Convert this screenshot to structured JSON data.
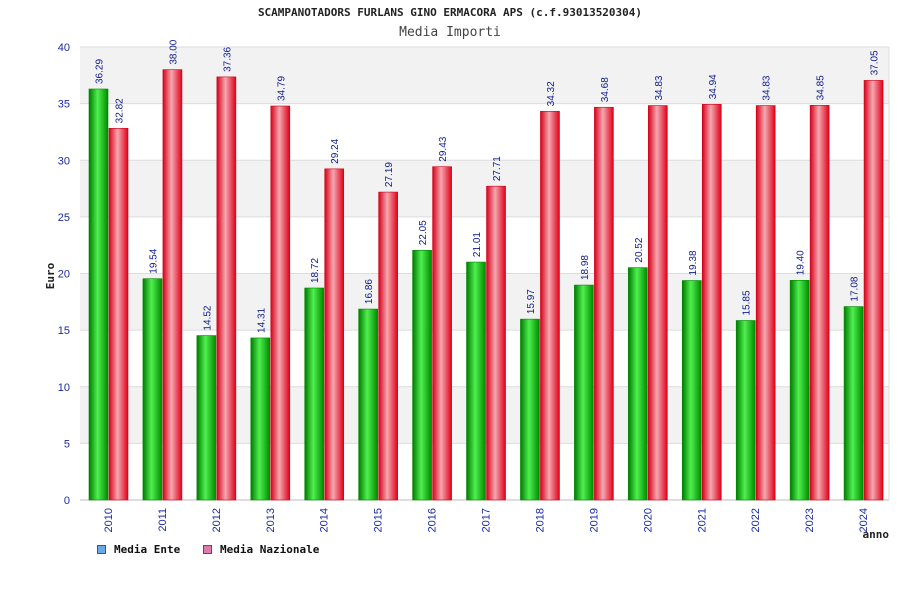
{
  "title": "SCAMPANOTADORS FURLANS GINO ERMACORA APS (c.f.93013520304)",
  "subtitle": "Media Importi",
  "colors": {
    "ente_dark": "#009a00",
    "ente_light": "#4ff04f",
    "naz_dark": "#e0001a",
    "naz_light": "#f0a0a8",
    "legend_ente": "#6aa6e8",
    "legend_naz": "#e07aaa",
    "band": "#f2f2f2",
    "axis_text": "#1a2aa0"
  },
  "chart_data": {
    "type": "bar",
    "xlabel": "anno",
    "ylabel": "Euro",
    "ylim": [
      0,
      40
    ],
    "yticks": [
      0,
      5,
      10,
      15,
      20,
      25,
      30,
      35,
      40
    ],
    "grid": true,
    "legend_placement": "bottom-left",
    "categories": [
      "2010",
      "2011",
      "2012",
      "2013",
      "2014",
      "2015",
      "2016",
      "2017",
      "2018",
      "2019",
      "2020",
      "2021",
      "2022",
      "2023",
      "2024"
    ],
    "series": [
      {
        "name": "Media Ente",
        "values": [
          36.29,
          19.54,
          14.52,
          14.31,
          18.72,
          16.86,
          22.05,
          21.01,
          15.97,
          18.98,
          20.52,
          19.38,
          15.85,
          19.4,
          17.08
        ],
        "labels": [
          "36.29",
          "19.54",
          "14.52",
          "14.31",
          "18.72",
          "16.86",
          "22.05",
          "21.01",
          "15.97",
          "18.98",
          "20.52",
          "19.38",
          "15.85",
          "19.40",
          "17.08"
        ]
      },
      {
        "name": "Media Nazionale",
        "values": [
          32.82,
          38.0,
          37.36,
          34.79,
          29.24,
          27.19,
          29.43,
          27.71,
          34.32,
          34.68,
          34.83,
          34.94,
          34.83,
          34.85,
          37.05
        ],
        "labels": [
          "32.82",
          "38.00",
          "37.36",
          "34.79",
          "29.24",
          "27.19",
          "29.43",
          "27.71",
          "34.32",
          "34.68",
          "34.83",
          "34.94",
          "34.83",
          "34.85",
          "37.05"
        ]
      }
    ]
  }
}
